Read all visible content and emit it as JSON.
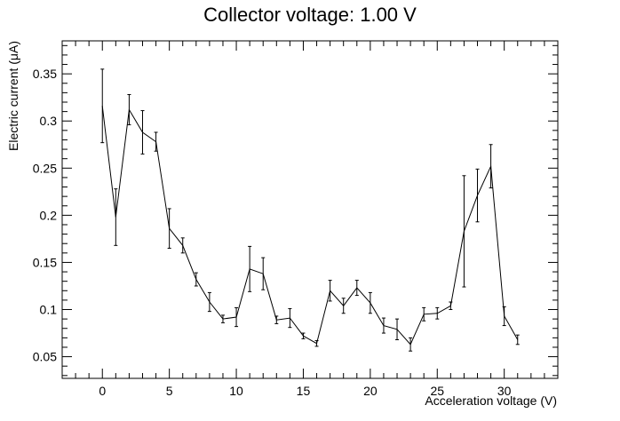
{
  "chart_data": {
    "type": "line",
    "title": "Collector voltage: 1.00 V",
    "xlabel": "Acceleration voltage (V)",
    "ylabel": "Electric current (μA)",
    "xlim": [
      -3,
      34
    ],
    "ylim": [
      0.027,
      0.385
    ],
    "xticks": [
      0,
      5,
      10,
      15,
      20,
      25,
      30
    ],
    "yticks": [
      0.05,
      0.1,
      0.15,
      0.2,
      0.25,
      0.3,
      0.35
    ],
    "ytick_labels": [
      "0.05",
      "0.1",
      "0.15",
      "0.2",
      "0.25",
      "0.3",
      "0.35"
    ],
    "grid": false,
    "series": [
      {
        "x": [
          0,
          1,
          2,
          3,
          4,
          5,
          6,
          7,
          8,
          9,
          10,
          11,
          12,
          13,
          14,
          15,
          16,
          17,
          18,
          19,
          20,
          21,
          22,
          23,
          24,
          25,
          26,
          27,
          28,
          29,
          30,
          31
        ],
        "y": [
          0.316,
          0.198,
          0.312,
          0.288,
          0.278,
          0.186,
          0.168,
          0.132,
          0.108,
          0.09,
          0.092,
          0.143,
          0.138,
          0.089,
          0.091,
          0.072,
          0.064,
          0.12,
          0.104,
          0.123,
          0.107,
          0.083,
          0.079,
          0.063,
          0.095,
          0.096,
          0.104,
          0.183,
          0.221,
          0.252,
          0.093,
          0.068
        ],
        "err": [
          0.039,
          0.03,
          0.016,
          0.023,
          0.01,
          0.021,
          0.008,
          0.007,
          0.01,
          0.004,
          0.01,
          0.024,
          0.017,
          0.004,
          0.01,
          0.003,
          0.003,
          0.011,
          0.008,
          0.008,
          0.011,
          0.008,
          0.011,
          0.007,
          0.007,
          0.006,
          0.004,
          0.059,
          0.028,
          0.023,
          0.01,
          0.005
        ]
      }
    ]
  }
}
